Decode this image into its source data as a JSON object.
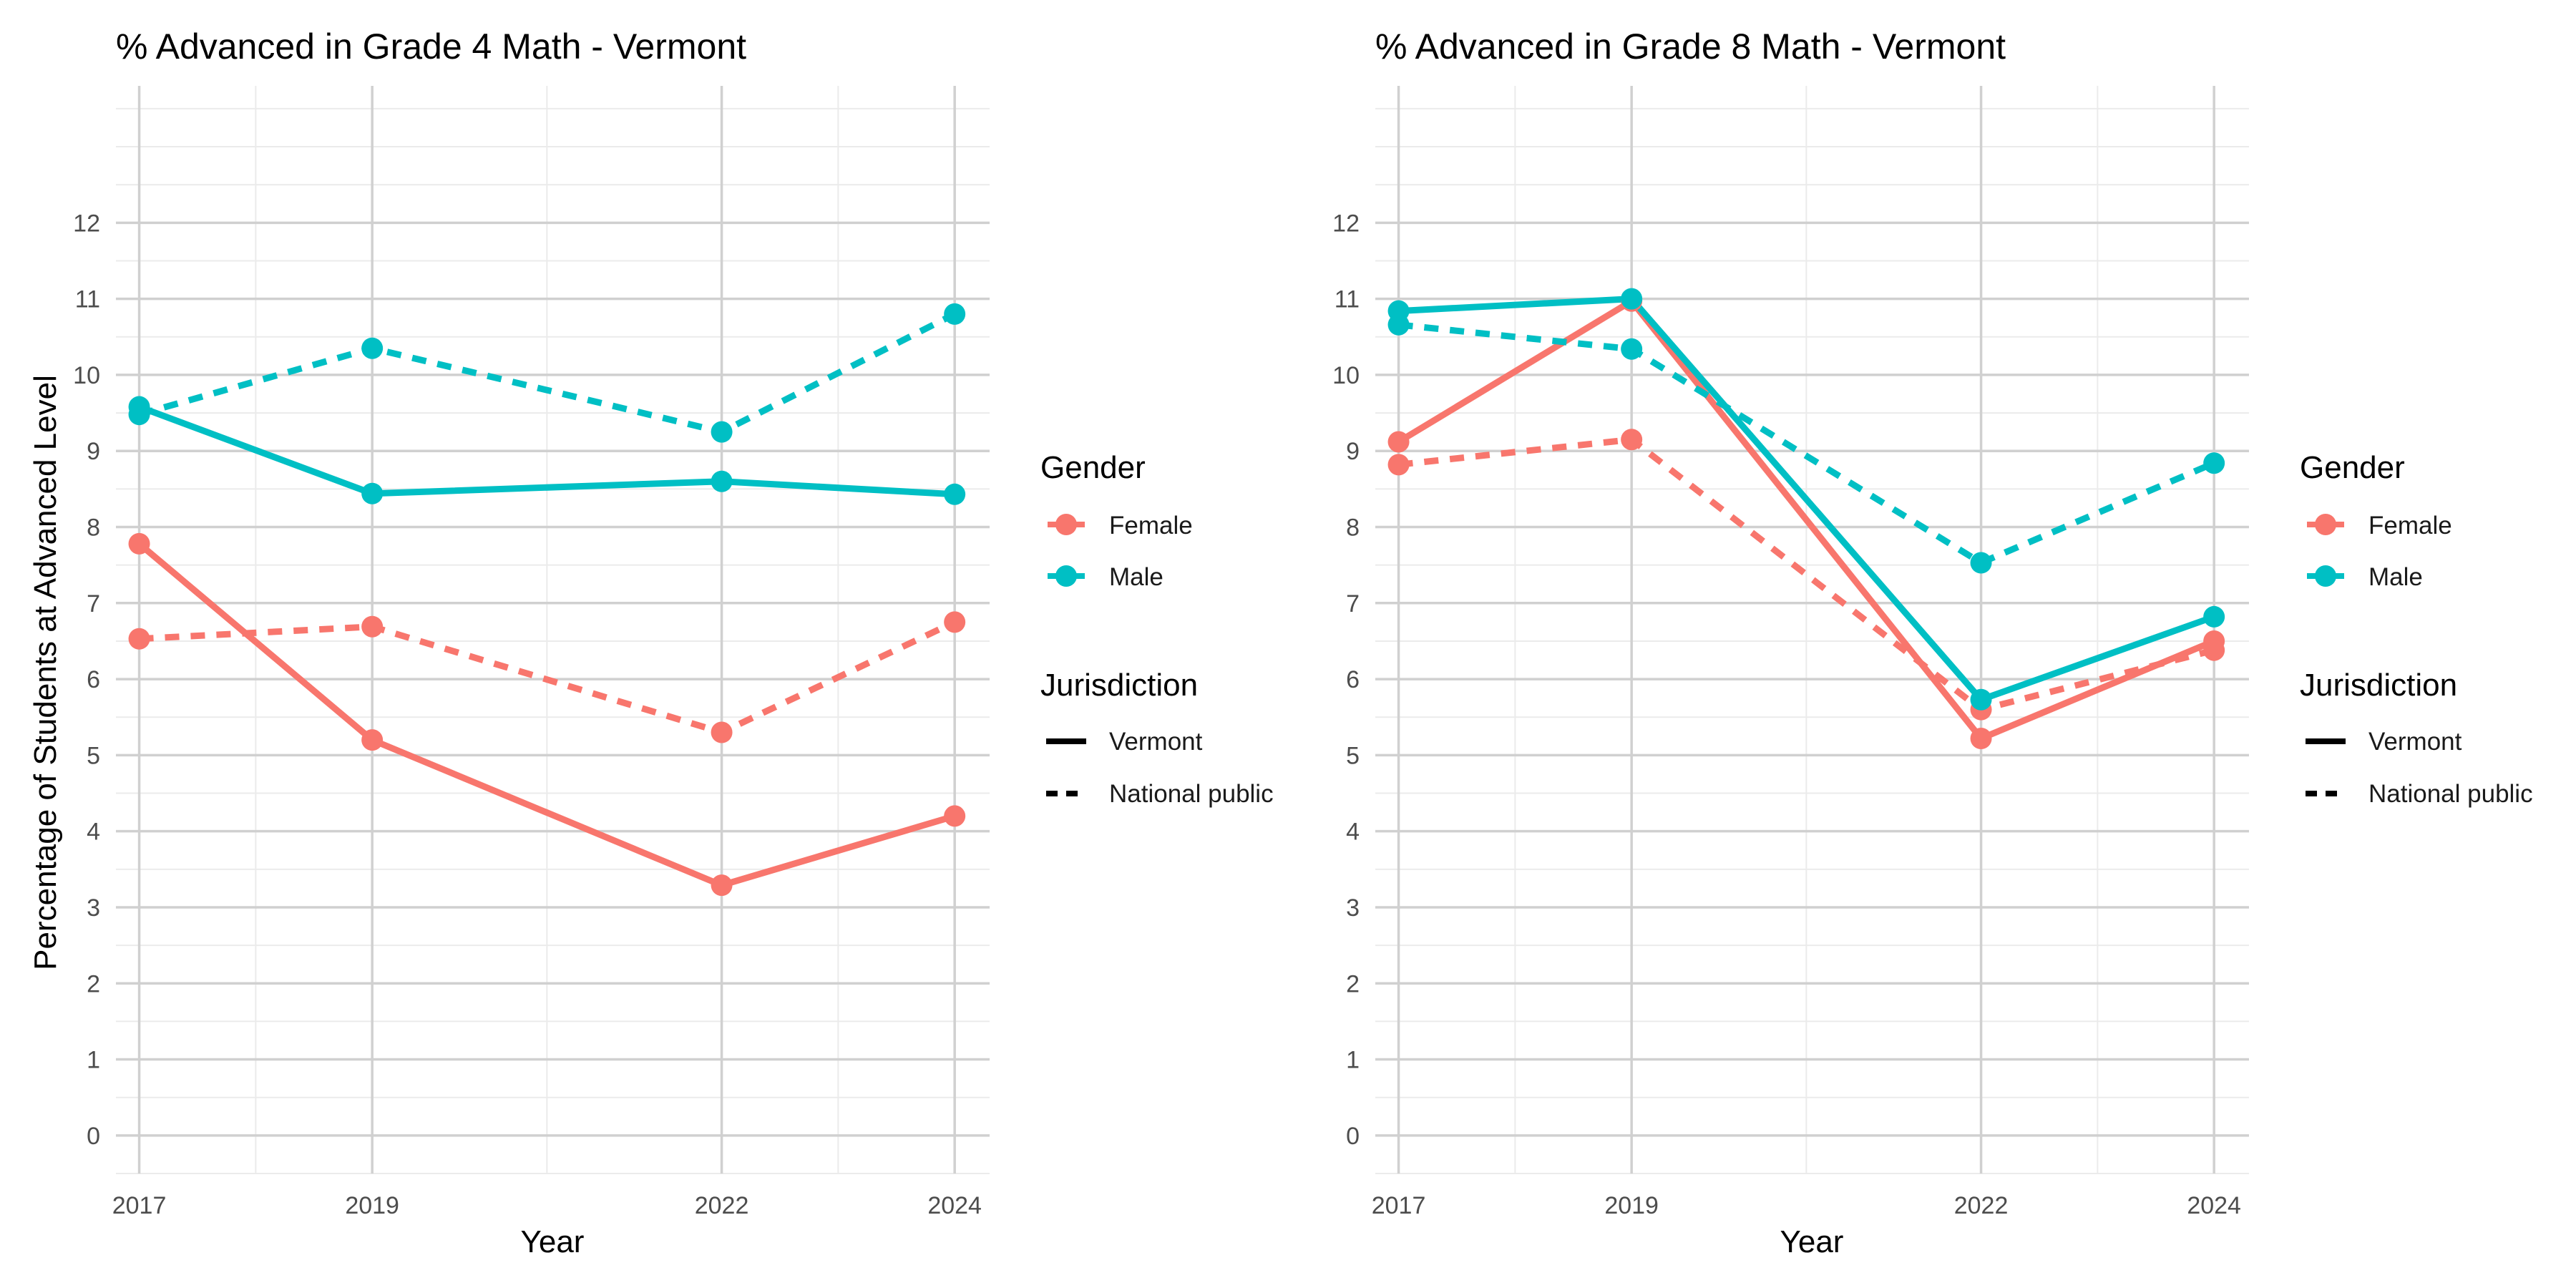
{
  "chart_data": [
    {
      "type": "line",
      "title": "% Advanced in Grade 4 Math - Vermont",
      "xlabel": "Year",
      "ylabel": "Percentage of Students at Advanced Level",
      "x": [
        2017,
        2019,
        2022,
        2024
      ],
      "x_ticks": [
        "2017",
        "2019",
        "2022",
        "2024"
      ],
      "y_ticks": [
        "0",
        "1",
        "2",
        "3",
        "4",
        "5",
        "6",
        "7",
        "8",
        "9",
        "10",
        "11",
        "12"
      ],
      "xlim": [
        2016.8,
        2024.3
      ],
      "ylim": [
        -0.5,
        13.8
      ],
      "grid": true,
      "series": [
        {
          "name": "Female",
          "gender": "Female",
          "jurisdiction": "Vermont",
          "color": "#F8766D",
          "dash": "solid",
          "values": [
            7.78,
            5.2,
            3.29,
            4.2
          ]
        },
        {
          "name": "Female",
          "gender": "Female",
          "jurisdiction": "National public",
          "color": "#F8766D",
          "dash": "dashed",
          "values": [
            6.53,
            6.69,
            5.3,
            6.75
          ]
        },
        {
          "name": "Male",
          "gender": "Male",
          "jurisdiction": "Vermont",
          "color": "#00BFC4",
          "dash": "solid",
          "values": [
            9.58,
            8.44,
            8.6,
            8.43
          ]
        },
        {
          "name": "Male",
          "gender": "Male",
          "jurisdiction": "National public",
          "color": "#00BFC4",
          "dash": "dashed",
          "values": [
            9.48,
            10.35,
            9.25,
            10.8
          ]
        }
      ]
    },
    {
      "type": "line",
      "title": "% Advanced in Grade 8 Math - Vermont",
      "xlabel": "Year",
      "ylabel": "",
      "x": [
        2017,
        2019,
        2022,
        2024
      ],
      "x_ticks": [
        "2017",
        "2019",
        "2022",
        "2024"
      ],
      "y_ticks": [
        "0",
        "1",
        "2",
        "3",
        "4",
        "5",
        "6",
        "7",
        "8",
        "9",
        "10",
        "11",
        "12"
      ],
      "xlim": [
        2016.8,
        2024.3
      ],
      "ylim": [
        -0.5,
        13.8
      ],
      "grid": true,
      "series": [
        {
          "name": "Female",
          "gender": "Female",
          "jurisdiction": "Vermont",
          "color": "#F8766D",
          "dash": "solid",
          "values": [
            9.12,
            10.97,
            5.22,
            6.5
          ]
        },
        {
          "name": "Female",
          "gender": "Female",
          "jurisdiction": "National public",
          "color": "#F8766D",
          "dash": "dashed",
          "values": [
            8.82,
            9.15,
            5.6,
            6.38
          ]
        },
        {
          "name": "Male",
          "gender": "Male",
          "jurisdiction": "Vermont",
          "color": "#00BFC4",
          "dash": "solid",
          "values": [
            10.84,
            11.0,
            5.73,
            6.82
          ]
        },
        {
          "name": "Male",
          "gender": "Male",
          "jurisdiction": "National public",
          "color": "#00BFC4",
          "dash": "dashed",
          "values": [
            10.66,
            10.34,
            7.53,
            8.84
          ]
        }
      ]
    }
  ],
  "legend": {
    "placement": "right",
    "gender_title": "Gender",
    "gender_items": [
      {
        "label": "Female",
        "color": "#F8766D"
      },
      {
        "label": "Male",
        "color": "#00BFC4"
      }
    ],
    "jurisdiction_title": "Jurisdiction",
    "jurisdiction_items": [
      {
        "label": "Vermont",
        "dash": "solid"
      },
      {
        "label": "National public",
        "dash": "dashed"
      }
    ]
  }
}
